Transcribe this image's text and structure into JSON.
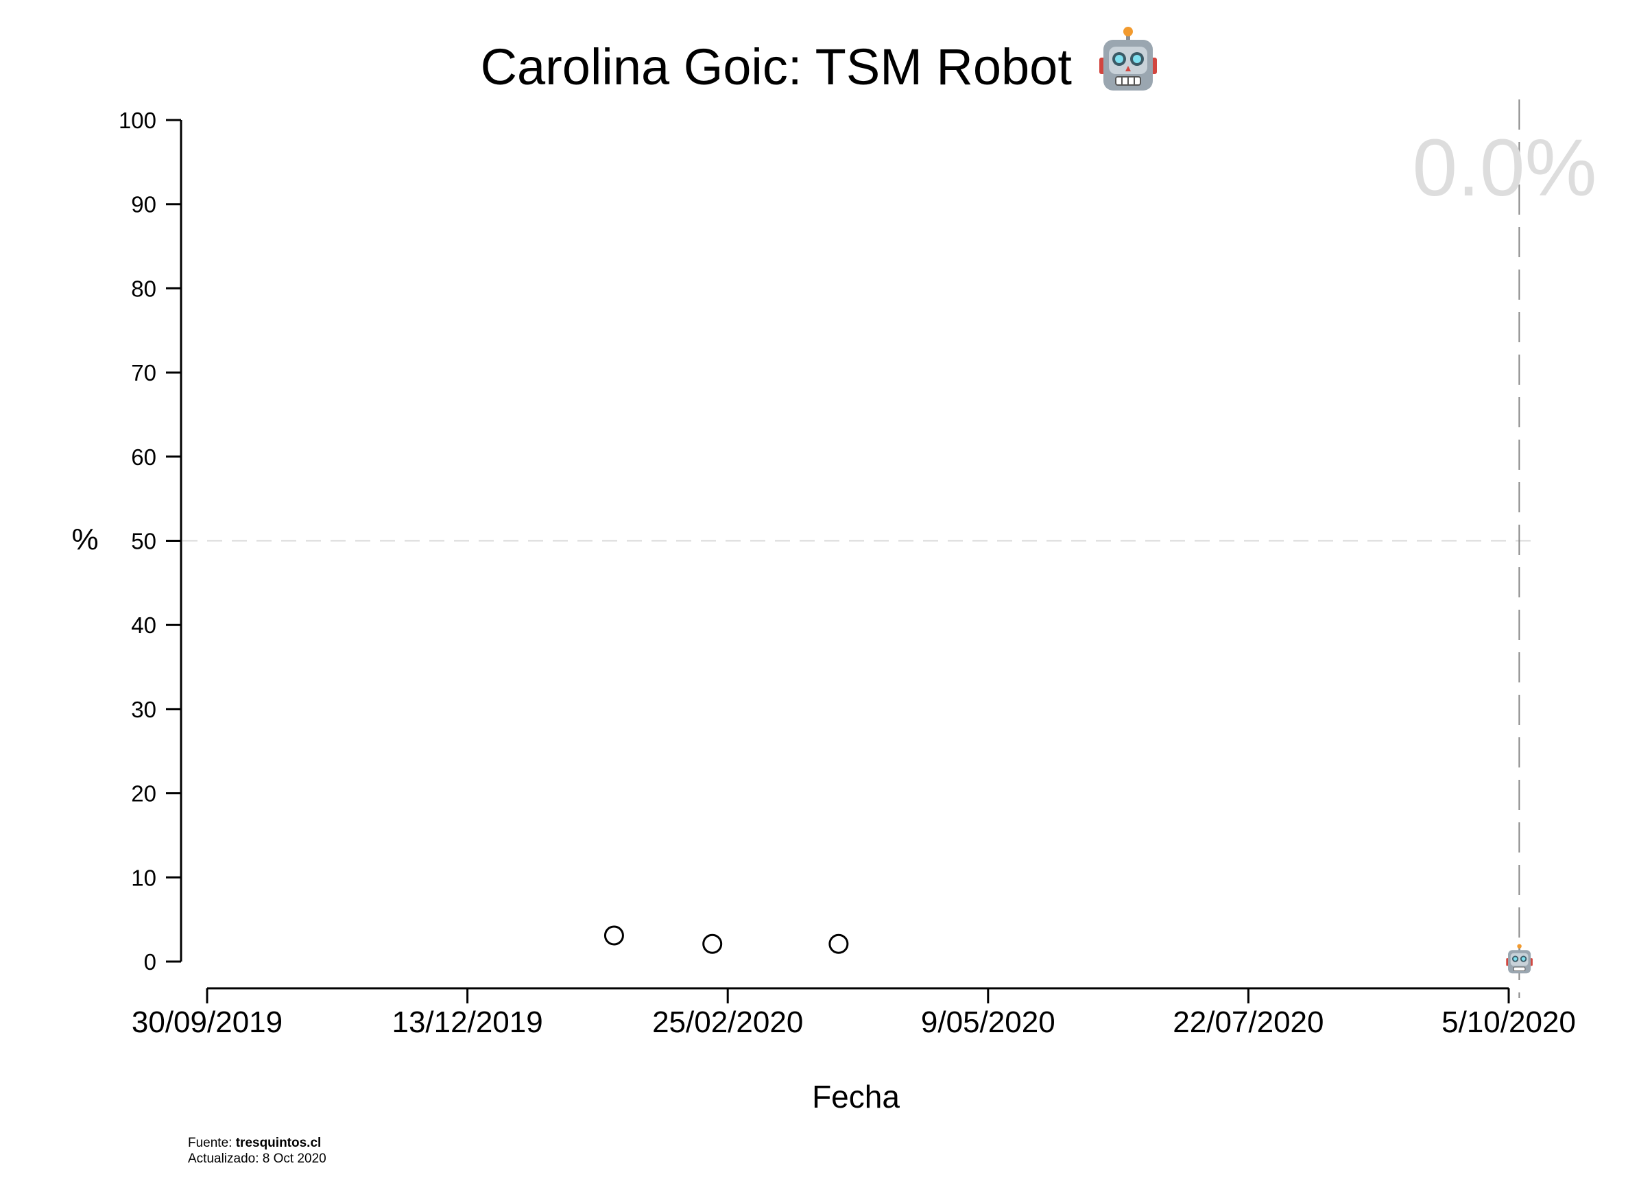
{
  "chart_data": {
    "type": "scatter",
    "title": "Carolina Goic: TSM Robot",
    "title_emoji": "robot-face",
    "xlabel": "Fecha",
    "ylabel": "%",
    "x_ticks": [
      "30/09/2019",
      "13/12/2019",
      "25/02/2020",
      "9/05/2020",
      "22/07/2020",
      "5/10/2020"
    ],
    "x_range": [
      "2019-09-30",
      "2020-10-05"
    ],
    "y_ticks": [
      0,
      10,
      20,
      30,
      40,
      50,
      60,
      70,
      80,
      90,
      100
    ],
    "ylim": [
      0,
      100
    ],
    "grid": false,
    "reference_line_y": 50,
    "current_date_line": "2020-10-08",
    "points": [
      {
        "x": "2020-01-24",
        "y": 3.1
      },
      {
        "x": "2020-02-21",
        "y": 2.1
      },
      {
        "x": "2020-03-28",
        "y": 2.1
      }
    ],
    "current_marker": {
      "x": "2020-10-08",
      "y": 0,
      "icon": "robot-icon"
    },
    "current_value_label": "0.0%",
    "colors": {
      "points": "#000000",
      "reference_line": "#d9d9d9",
      "current_line": "#888888",
      "value_label": "#dddddd"
    }
  },
  "footer": {
    "source_prefix": "Fuente: ",
    "source_name": "tresquintos.cl",
    "updated": "Actualizado: 8 Oct 2020"
  }
}
